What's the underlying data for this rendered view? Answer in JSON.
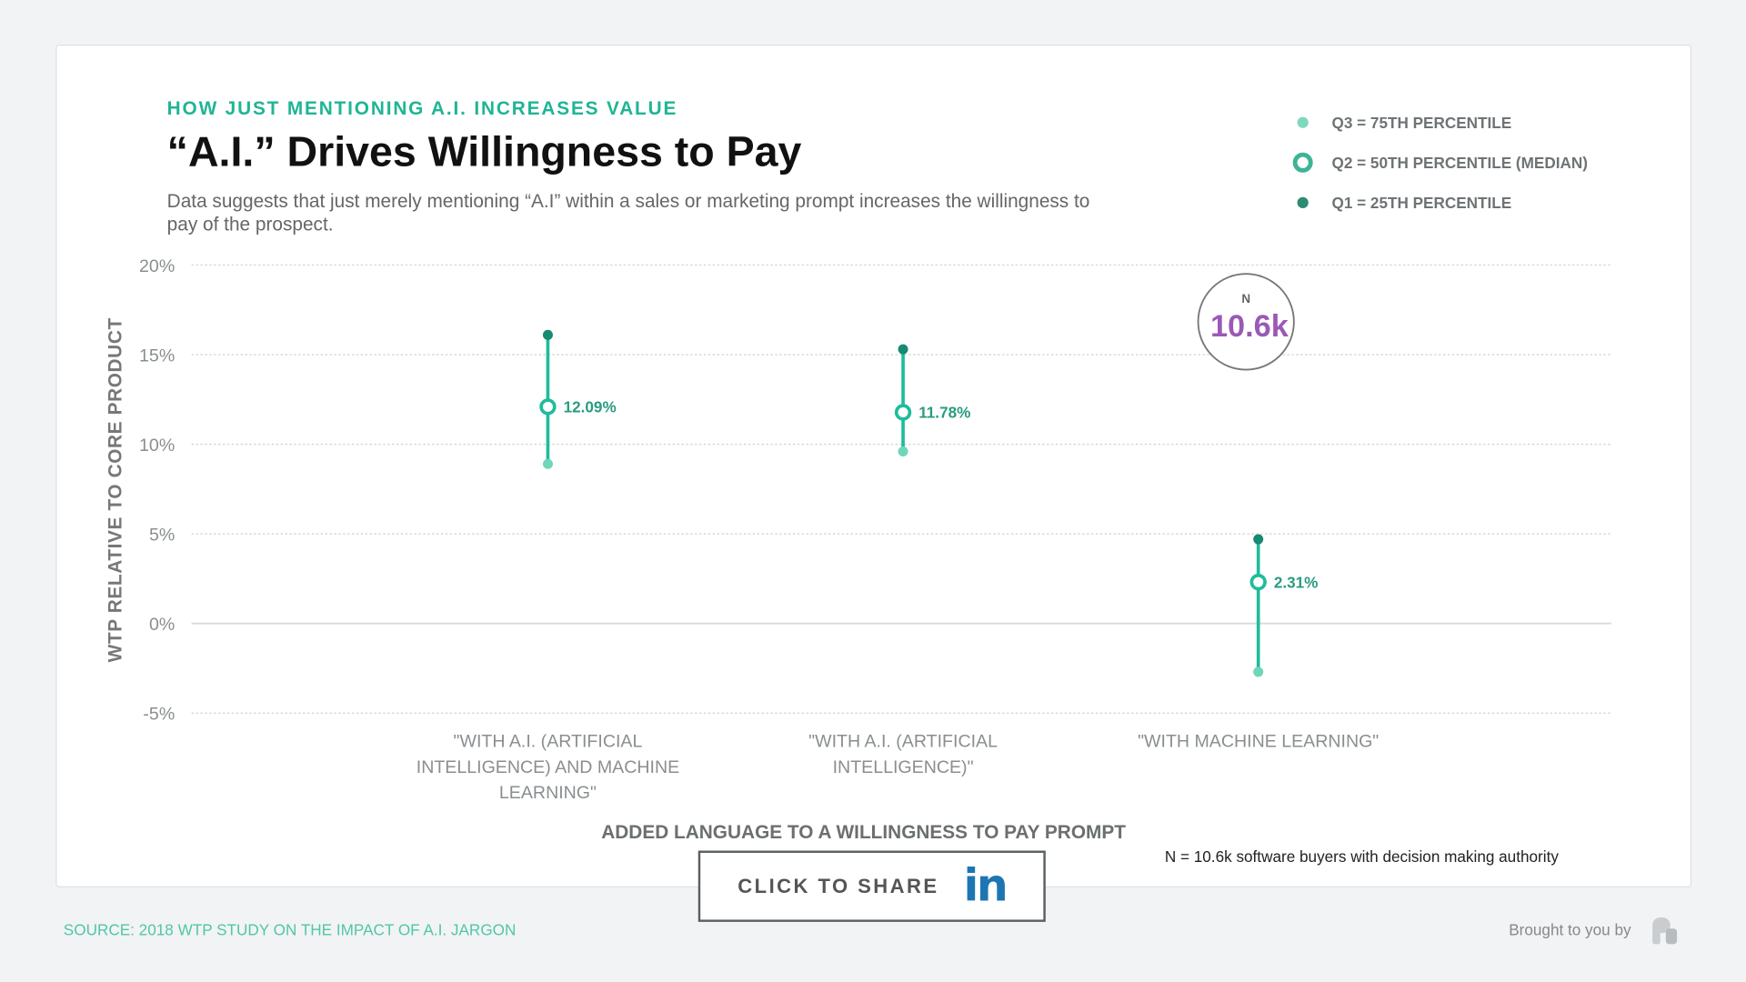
{
  "header": {
    "kicker": "HOW JUST MENTIONING A.I. INCREASES VALUE",
    "title": "“A.I.” Drives Willingness to Pay",
    "subtitle": "Data suggests that just merely mentioning “A.I” within a sales or marketing prompt increases the willingness to pay of the prospect."
  },
  "legend": [
    {
      "label": "Q3 = 75TH PERCENTILE",
      "color": "#7fd8be"
    },
    {
      "label": "Q2 = 50TH PERCENTILE (MEDIAN)",
      "color": "#1fb594"
    },
    {
      "label": "Q1  = 25TH PERCENTILE",
      "color": "#1a8a70"
    }
  ],
  "n_badge": {
    "label": "N",
    "value": "10.6k",
    "color": "#9b59b6"
  },
  "chart_data": {
    "type": "range-dot",
    "ylabel": "WTP RELATIVE TO CORE PRODUCT",
    "xlabel": "ADDED LANGUAGE TO A WILLINGNESS TO PAY PROMPT",
    "ylim": [
      -5,
      20
    ],
    "yticks": [
      20,
      15,
      10,
      5,
      0,
      -5
    ],
    "ytick_labels": [
      "20%",
      "15%",
      "10%",
      "5%",
      "0%",
      "-5%"
    ],
    "grid": true,
    "categories": [
      [
        "\"WITH A.I. (ARTIFICIAL",
        "INTELLIGENCE) AND MACHINE",
        "LEARNING\""
      ],
      [
        "\"WITH A.I. (ARTIFICIAL",
        "INTELLIGENCE)\""
      ],
      [
        "\"WITH MACHINE LEARNING\""
      ]
    ],
    "series": [
      {
        "name": "Top",
        "values": [
          16.1,
          15.3,
          4.7
        ]
      },
      {
        "name": "Q2 median",
        "values": [
          12.09,
          11.78,
          2.31
        ],
        "labels": [
          "12.09%",
          "11.78%",
          "2.31%"
        ]
      },
      {
        "name": "Bottom",
        "values": [
          8.9,
          9.6,
          -2.7
        ]
      }
    ]
  },
  "footer": {
    "note": "N = 10.6k software buyers with decision making authority",
    "share_label": "CLICK TO SHARE",
    "share_icon_text": "in",
    "source": "SOURCE: 2018 WTP STUDY ON THE IMPACT OF A.I. JARGON",
    "brought": "Brought to you by"
  }
}
